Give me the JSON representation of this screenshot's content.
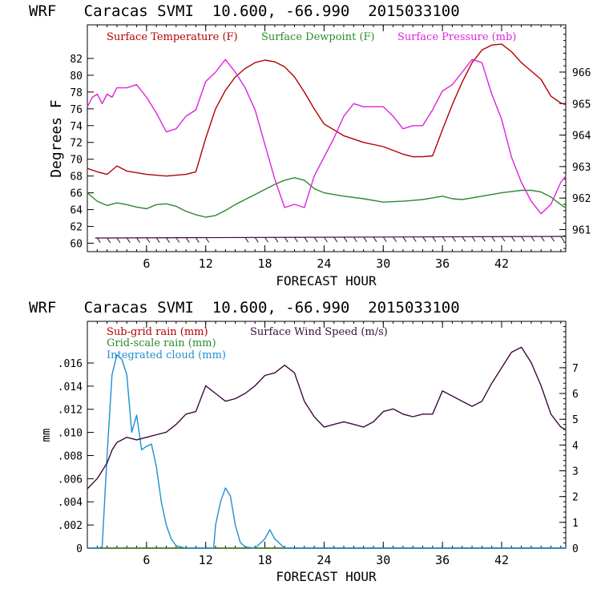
{
  "chart_data": [
    {
      "type": "line",
      "title": "WRF   Caracas SVMI  10.600, -66.990  2015033100",
      "xlabel": "FORECAST HOUR",
      "ylabel": "Degrees F",
      "xlim": [
        0,
        48.5
      ],
      "ylim": [
        59,
        86
      ],
      "ylim_right": [
        960.3,
        967.5
      ],
      "x_ticks": [
        6,
        12,
        18,
        24,
        30,
        36,
        42
      ],
      "y_ticks": [
        60,
        62,
        64,
        66,
        68,
        70,
        72,
        74,
        76,
        78,
        80,
        82
      ],
      "y_ticks_right": [
        961,
        962,
        963,
        964,
        965,
        966
      ],
      "series": [
        {
          "name": "Surface Temperature (F)",
          "color": "#b30000",
          "axis": "left",
          "x": [
            0,
            1,
            2,
            3,
            4,
            6,
            8,
            10,
            11,
            12,
            13,
            14,
            15,
            16,
            17,
            18,
            19,
            20,
            21,
            22,
            23,
            24,
            26,
            28,
            30,
            32,
            33,
            34,
            35,
            36,
            37,
            38,
            39,
            40,
            41,
            42,
            43,
            44,
            45,
            46,
            47,
            48,
            48.5
          ],
          "y": [
            68.9,
            68.5,
            68.2,
            69.2,
            68.6,
            68.2,
            68.0,
            68.2,
            68.5,
            72.5,
            76.0,
            78.2,
            79.8,
            80.8,
            81.5,
            81.8,
            81.6,
            81.0,
            79.8,
            78.0,
            76.0,
            74.2,
            72.8,
            72.0,
            71.5,
            70.6,
            70.3,
            70.3,
            70.4,
            73.5,
            76.5,
            79.2,
            81.5,
            83.0,
            83.6,
            83.7,
            82.8,
            81.5,
            80.5,
            79.5,
            77.5,
            76.7,
            76.5
          ]
        },
        {
          "name": "Surface Dewpoint (F)",
          "color": "#2a8a2a",
          "axis": "left",
          "x": [
            0,
            1,
            2,
            3,
            4,
            5,
            6,
            7,
            8,
            9,
            10,
            11,
            12,
            13,
            14,
            15,
            16,
            17,
            18,
            19,
            20,
            21,
            22,
            23,
            24,
            26,
            28,
            30,
            32,
            34,
            35,
            36,
            37,
            38,
            40,
            42,
            44,
            45,
            46,
            47,
            48,
            48.5
          ],
          "y": [
            66.0,
            65.0,
            64.5,
            64.8,
            64.6,
            64.3,
            64.1,
            64.6,
            64.7,
            64.4,
            63.8,
            63.4,
            63.1,
            63.3,
            63.9,
            64.6,
            65.2,
            65.8,
            66.4,
            67.0,
            67.5,
            67.8,
            67.5,
            66.5,
            66.0,
            65.6,
            65.3,
            64.9,
            65.0,
            65.2,
            65.4,
            65.6,
            65.3,
            65.2,
            65.6,
            66.0,
            66.3,
            66.3,
            66.1,
            65.5,
            64.6,
            64.2
          ]
        },
        {
          "name": "Surface Pressure (mb)",
          "color": "#dd22dd",
          "axis": "right",
          "x": [
            0,
            0.5,
            1,
            1.5,
            2,
            2.5,
            3,
            4,
            5,
            5.5,
            6,
            7,
            8,
            9,
            10,
            11,
            12,
            13,
            14,
            15,
            16,
            17,
            18,
            19,
            20,
            21,
            22,
            23,
            24,
            25,
            26,
            27,
            28,
            29,
            30,
            31,
            32,
            33,
            34,
            35,
            36,
            37,
            38,
            39,
            40,
            41,
            42,
            43,
            44,
            45,
            46,
            47,
            48,
            48.5
          ],
          "y": [
            964.9,
            965.2,
            965.3,
            965.0,
            965.3,
            965.2,
            965.5,
            965.5,
            965.6,
            965.4,
            965.2,
            964.7,
            964.1,
            964.2,
            964.6,
            964.8,
            965.7,
            966.0,
            966.4,
            966.0,
            965.5,
            964.8,
            963.7,
            962.6,
            961.7,
            961.8,
            961.7,
            962.7,
            963.3,
            963.9,
            964.6,
            965.0,
            964.9,
            964.9,
            964.9,
            964.6,
            964.2,
            964.3,
            964.3,
            964.8,
            965.4,
            965.6,
            966.0,
            966.4,
            966.3,
            965.3,
            964.5,
            963.3,
            962.5,
            961.9,
            961.5,
            961.8,
            962.5,
            962.7
          ]
        }
      ],
      "wind_barbs": "row of wind barbs drawn along the bottom of the temperature panel",
      "legend": "top"
    },
    {
      "type": "line",
      "title": "WRF   Caracas SVMI  10.600, -66.990  2015033100",
      "xlabel": "FORECAST HOUR",
      "ylabel": "mm",
      "xlim": [
        0,
        48.5
      ],
      "ylim": [
        0,
        0.0196
      ],
      "ylim_right": [
        0,
        8.8
      ],
      "x_ticks": [
        6,
        12,
        18,
        24,
        30,
        36,
        42
      ],
      "x_tick_labels": [
        "6",
        "12",
        "18",
        "24",
        "30",
        "36",
        "42"
      ],
      "y_ticks": [
        0,
        0.002,
        0.004,
        0.006,
        0.008,
        0.01,
        0.012,
        0.014,
        0.016
      ],
      "y_tick_labels": [
        "0",
        ".002",
        ".004",
        ".006",
        ".008",
        ".010",
        ".012",
        ".014",
        ".016"
      ],
      "y_ticks_right": [
        0,
        1,
        2,
        3,
        4,
        5,
        6,
        7
      ],
      "series": [
        {
          "name": "Sub-grid rain (mm)",
          "color": "#b30000",
          "axis": "left",
          "x": [
            0,
            48.5
          ],
          "y": [
            0,
            0
          ]
        },
        {
          "name": "Grid-scale rain (mm)",
          "color": "#2a8a2a",
          "axis": "left",
          "x": [
            0,
            48.5
          ],
          "y": [
            0,
            0
          ]
        },
        {
          "name": "Integrated cloud (mm)",
          "color": "#1e8fd0",
          "axis": "left",
          "x": [
            0,
            1,
            1.5,
            2,
            2.5,
            3,
            3.5,
            4,
            4.5,
            5,
            5.5,
            6,
            6.5,
            7,
            7.5,
            8,
            8.5,
            9,
            10,
            12,
            12.8,
            13,
            13.5,
            14,
            14.5,
            15,
            15.5,
            16,
            17,
            18,
            18.5,
            19,
            20,
            24,
            48.5
          ],
          "y": [
            0,
            0,
            0.0001,
            0.008,
            0.015,
            0.0167,
            0.0163,
            0.015,
            0.01,
            0.0115,
            0.0085,
            0.0088,
            0.009,
            0.007,
            0.004,
            0.002,
            0.0008,
            0.0002,
            0,
            0,
            0,
            0.002,
            0.004,
            0.0052,
            0.0045,
            0.002,
            0.0005,
            0.0001,
            0,
            0.0008,
            0.0016,
            0.0008,
            0,
            0,
            0
          ]
        },
        {
          "name": "Surface Wind Speed (m/s)",
          "color": "#3d0a3d",
          "axis": "right",
          "x": [
            0,
            1,
            2,
            2.5,
            3,
            4,
            5,
            6,
            7,
            8,
            9,
            10,
            11,
            12,
            13,
            14,
            15,
            16,
            17,
            18,
            19,
            20,
            21,
            22,
            23,
            24,
            25,
            26,
            27,
            28,
            29,
            30,
            31,
            32,
            33,
            34,
            35,
            36,
            37,
            38,
            39,
            40,
            41,
            42,
            43,
            44,
            45,
            46,
            47,
            48,
            48.5
          ],
          "y": [
            2.3,
            2.7,
            3.3,
            3.8,
            4.1,
            4.3,
            4.2,
            4.3,
            4.4,
            4.5,
            4.8,
            5.2,
            5.3,
            6.3,
            6.0,
            5.7,
            5.8,
            6.0,
            6.3,
            6.7,
            6.8,
            7.1,
            6.8,
            5.7,
            5.1,
            4.7,
            4.8,
            4.9,
            4.8,
            4.7,
            4.9,
            5.3,
            5.4,
            5.2,
            5.1,
            5.2,
            5.2,
            6.1,
            5.9,
            5.7,
            5.5,
            5.7,
            6.4,
            7.0,
            7.6,
            7.8,
            7.2,
            6.3,
            5.2,
            4.7,
            4.6
          ]
        }
      ],
      "legend": "top-left"
    }
  ]
}
